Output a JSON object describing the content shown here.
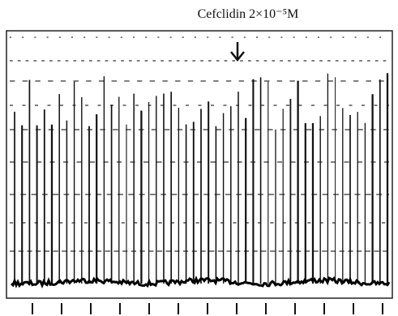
{
  "annotation": "Cefclidin 2×10⁻⁵M"
}
